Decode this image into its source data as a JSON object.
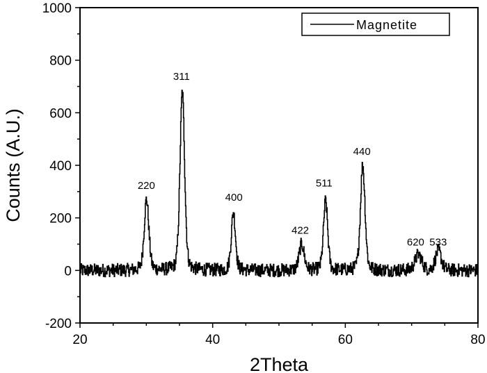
{
  "chart_data": {
    "type": "line",
    "title": "",
    "xlabel": "2Theta",
    "ylabel": "Counts (A.U.)",
    "xlim": [
      20,
      80
    ],
    "ylim": [
      -200,
      1000
    ],
    "x_ticks": [
      "20",
      "40",
      "60",
      "80"
    ],
    "y_ticks": [
      "-200",
      "0",
      "200",
      "400",
      "600",
      "800",
      "1000"
    ],
    "grid": false,
    "legend": {
      "position": "top-right",
      "entries": [
        "Magnetite"
      ]
    },
    "series": [
      {
        "name": "Magnetite",
        "baseline": 0,
        "noise_amplitude": 25,
        "peaks": [
          {
            "x": 30.0,
            "y": 270,
            "label": "220",
            "width": 0.55
          },
          {
            "x": 35.4,
            "y": 680,
            "label": "311",
            "width": 0.55
          },
          {
            "x": 43.1,
            "y": 220,
            "label": "400",
            "width": 0.5
          },
          {
            "x": 53.4,
            "y": 100,
            "label": "422",
            "width": 0.6
          },
          {
            "x": 57.0,
            "y": 265,
            "label": "511",
            "width": 0.5
          },
          {
            "x": 62.6,
            "y": 400,
            "label": "440",
            "width": 0.55
          },
          {
            "x": 71.0,
            "y": 60,
            "label": "620",
            "width": 0.8
          },
          {
            "x": 74.0,
            "y": 75,
            "label": "533",
            "width": 0.7
          }
        ]
      }
    ],
    "annotations": [
      {
        "text": "220",
        "x": 30.0,
        "y": 310
      },
      {
        "text": "311",
        "x": 35.3,
        "y": 725
      },
      {
        "text": "400",
        "x": 43.2,
        "y": 265
      },
      {
        "text": "422",
        "x": 53.2,
        "y": 140
      },
      {
        "text": "511",
        "x": 56.8,
        "y": 320
      },
      {
        "text": "440",
        "x": 62.5,
        "y": 440
      },
      {
        "text": "620",
        "x": 70.6,
        "y": 95
      },
      {
        "text": "533",
        "x": 74.0,
        "y": 95
      }
    ]
  }
}
